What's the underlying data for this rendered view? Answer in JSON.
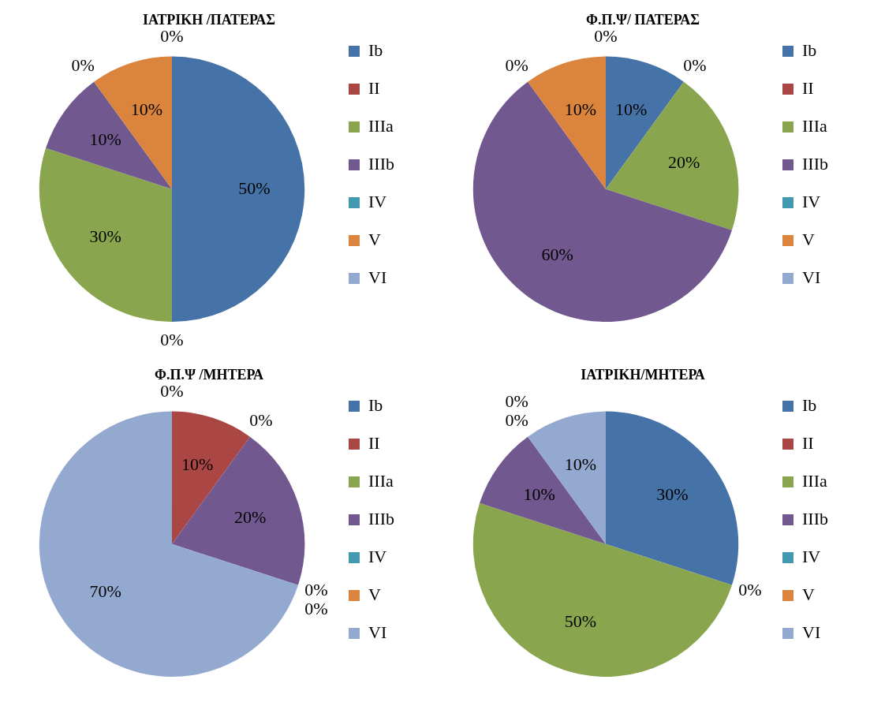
{
  "chart_data": [
    {
      "type": "pie",
      "title": "ΙΑΤΡΙΚΗ /ΠΑΤΕΡΑΣ",
      "categories": [
        "Ib",
        "II",
        "IIIa",
        "IIIb",
        "IV",
        "V",
        "VI"
      ],
      "values": [
        50,
        0,
        30,
        10,
        0,
        10,
        0
      ],
      "value_labels": [
        "50%",
        "0%",
        "30%",
        "10%",
        "0%",
        "10%",
        "0%"
      ],
      "colors": [
        "#4572a7",
        "#aa4643",
        "#89a54e",
        "#71588f",
        "#4198af",
        "#db843d",
        "#93a9cf"
      ],
      "legend": "right"
    },
    {
      "type": "pie",
      "title": "Φ.Π.Ψ/ ΠΑΤΕΡΑΣ",
      "categories": [
        "Ib",
        "II",
        "IIIa",
        "IIIb",
        "IV",
        "V",
        "VI"
      ],
      "values": [
        10,
        0,
        20,
        60,
        0,
        10,
        0
      ],
      "value_labels": [
        "10%",
        "0%",
        "20%",
        "60%",
        "0%",
        "10%",
        "0%"
      ],
      "colors": [
        "#4572a7",
        "#aa4643",
        "#89a54e",
        "#71588f",
        "#4198af",
        "#db843d",
        "#93a9cf"
      ],
      "legend": "right"
    },
    {
      "type": "pie",
      "title": "Φ.Π.Ψ /ΜΗΤΕΡΑ",
      "categories": [
        "Ib",
        "II",
        "IIIa",
        "IIIb",
        "IV",
        "V",
        "VI"
      ],
      "values": [
        0,
        10,
        0,
        20,
        0,
        0,
        70
      ],
      "value_labels": [
        "0%",
        "10%",
        "0%",
        "20%",
        "0%",
        "0%",
        "70%"
      ],
      "colors": [
        "#4572a7",
        "#aa4643",
        "#89a54e",
        "#71588f",
        "#4198af",
        "#db843d",
        "#93a9cf"
      ],
      "legend": "right"
    },
    {
      "type": "pie",
      "title": "ΙΑΤΡΙΚΗ/ΜΗΤΕΡΑ",
      "categories": [
        "Ib",
        "II",
        "IIIa",
        "IIIb",
        "IV",
        "V",
        "VI"
      ],
      "values": [
        30,
        0,
        50,
        10,
        0,
        0,
        10
      ],
      "value_labels": [
        "30%",
        "0%",
        "50%",
        "10%",
        "0%",
        "0%",
        "10%"
      ],
      "colors": [
        "#4572a7",
        "#aa4643",
        "#89a54e",
        "#71588f",
        "#4198af",
        "#db843d",
        "#93a9cf"
      ],
      "legend": "right"
    }
  ]
}
